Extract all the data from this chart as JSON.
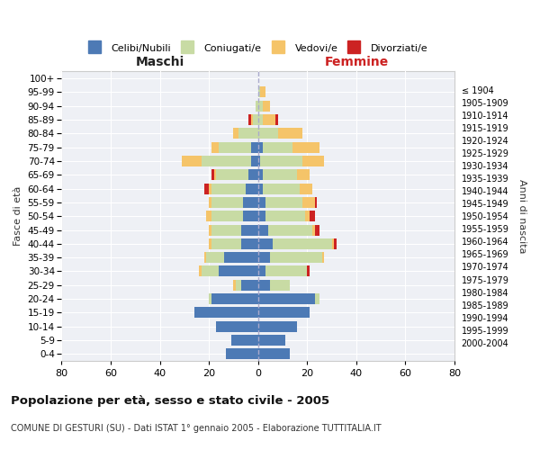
{
  "age_groups": [
    "0-4",
    "5-9",
    "10-14",
    "15-19",
    "20-24",
    "25-29",
    "30-34",
    "35-39",
    "40-44",
    "45-49",
    "50-54",
    "55-59",
    "60-64",
    "65-69",
    "70-74",
    "75-79",
    "80-84",
    "85-89",
    "90-94",
    "95-99",
    "100+"
  ],
  "birth_years": [
    "2000-2004",
    "1995-1999",
    "1990-1994",
    "1985-1989",
    "1980-1984",
    "1975-1979",
    "1970-1974",
    "1965-1969",
    "1960-1964",
    "1955-1959",
    "1950-1954",
    "1945-1949",
    "1940-1944",
    "1935-1939",
    "1930-1934",
    "1925-1929",
    "1920-1924",
    "1915-1919",
    "1910-1914",
    "1905-1909",
    "≤ 1904"
  ],
  "males": {
    "celibi": [
      13,
      11,
      17,
      26,
      19,
      7,
      16,
      14,
      7,
      7,
      6,
      6,
      5,
      4,
      3,
      3,
      0,
      0,
      0,
      0,
      0
    ],
    "coniugati": [
      0,
      0,
      0,
      0,
      1,
      2,
      7,
      7,
      12,
      12,
      13,
      13,
      14,
      13,
      20,
      13,
      8,
      2,
      1,
      0,
      0
    ],
    "vedovi": [
      0,
      0,
      0,
      0,
      0,
      1,
      1,
      1,
      1,
      1,
      2,
      1,
      1,
      1,
      8,
      3,
      2,
      1,
      0,
      0,
      0
    ],
    "divorziati": [
      0,
      0,
      0,
      0,
      0,
      0,
      0,
      0,
      0,
      0,
      0,
      0,
      2,
      1,
      0,
      0,
      0,
      1,
      0,
      0,
      0
    ]
  },
  "females": {
    "nubili": [
      13,
      11,
      16,
      21,
      23,
      5,
      3,
      5,
      6,
      4,
      3,
      3,
      2,
      2,
      1,
      2,
      0,
      0,
      0,
      0,
      0
    ],
    "coniugate": [
      0,
      0,
      0,
      0,
      2,
      8,
      17,
      21,
      24,
      18,
      16,
      15,
      15,
      14,
      17,
      12,
      8,
      2,
      2,
      1,
      0
    ],
    "vedove": [
      0,
      0,
      0,
      0,
      0,
      0,
      0,
      1,
      1,
      1,
      2,
      5,
      5,
      5,
      9,
      11,
      10,
      5,
      3,
      2,
      0
    ],
    "divorziate": [
      0,
      0,
      0,
      0,
      0,
      0,
      1,
      0,
      1,
      2,
      2,
      1,
      0,
      0,
      0,
      0,
      0,
      1,
      0,
      0,
      0
    ]
  },
  "colors": {
    "celibi": "#4d7ab5",
    "coniugati": "#c8dba4",
    "vedovi": "#f5c469",
    "divorziati": "#cc2222"
  },
  "xlim": 80,
  "title": "Popolazione per età, sesso e stato civile - 2005",
  "subtitle": "COMUNE DI GESTURI (SU) - Dati ISTAT 1° gennaio 2005 - Elaborazione TUTTITALIA.IT",
  "xlabel_left": "Maschi",
  "xlabel_right": "Femmine",
  "ylabel_left": "Fasce di età",
  "ylabel_right": "Anni di nascita",
  "legend_labels": [
    "Celibi/Nubili",
    "Coniugati/e",
    "Vedovi/e",
    "Divorziati/e"
  ],
  "bg_color": "#ffffff",
  "plot_bg": "#eef0f5",
  "grid_color": "#ffffff"
}
